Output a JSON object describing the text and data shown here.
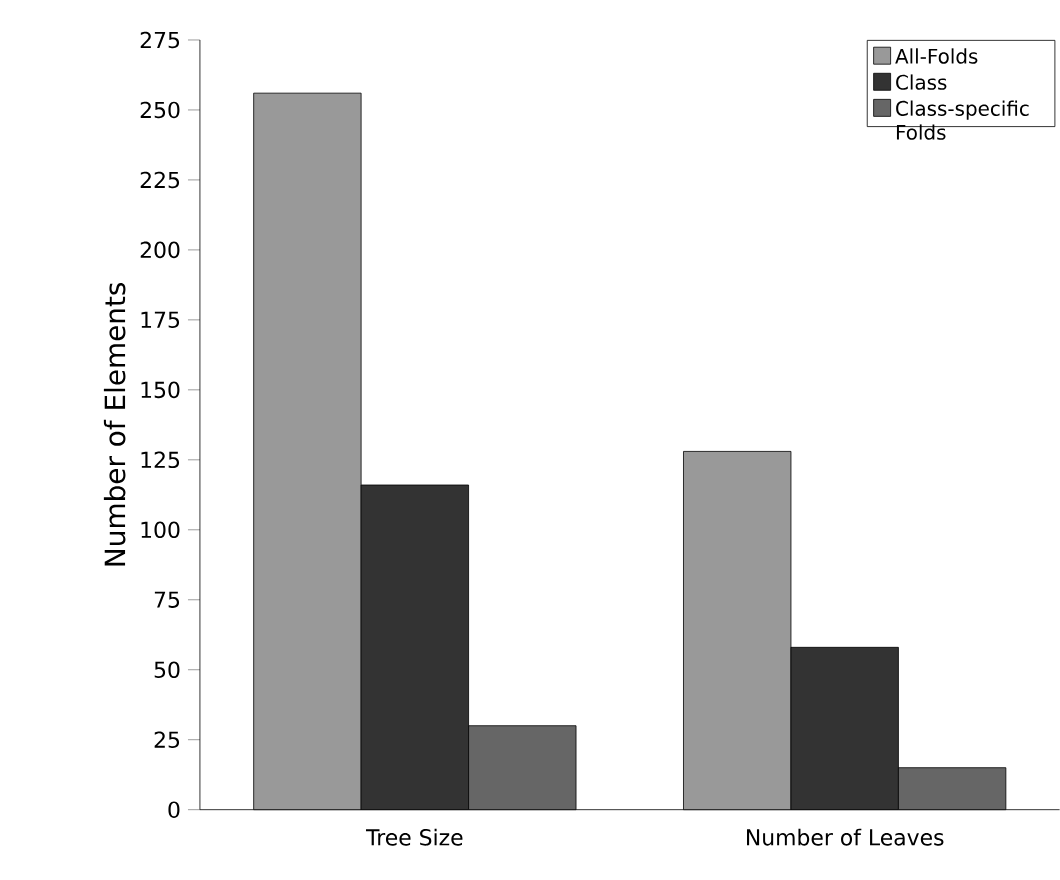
{
  "chart_data": {
    "type": "bar",
    "ylabel": "Number of Elements",
    "categories": [
      "Tree Size",
      "Number of Leaves"
    ],
    "series": [
      {
        "name": "All-Folds",
        "color": "#999999",
        "values": [
          256,
          128
        ]
      },
      {
        "name": "Class",
        "color": "#333333",
        "values": [
          116,
          58
        ]
      },
      {
        "name": "Class-specific Folds",
        "color": "#666666",
        "values": [
          30,
          15
        ]
      }
    ],
    "ylim": [
      0,
      275
    ],
    "yticks": [
      0,
      25,
      50,
      75,
      100,
      125,
      150,
      175,
      200,
      225,
      250,
      275
    ],
    "grid": false,
    "legend": "top right"
  }
}
